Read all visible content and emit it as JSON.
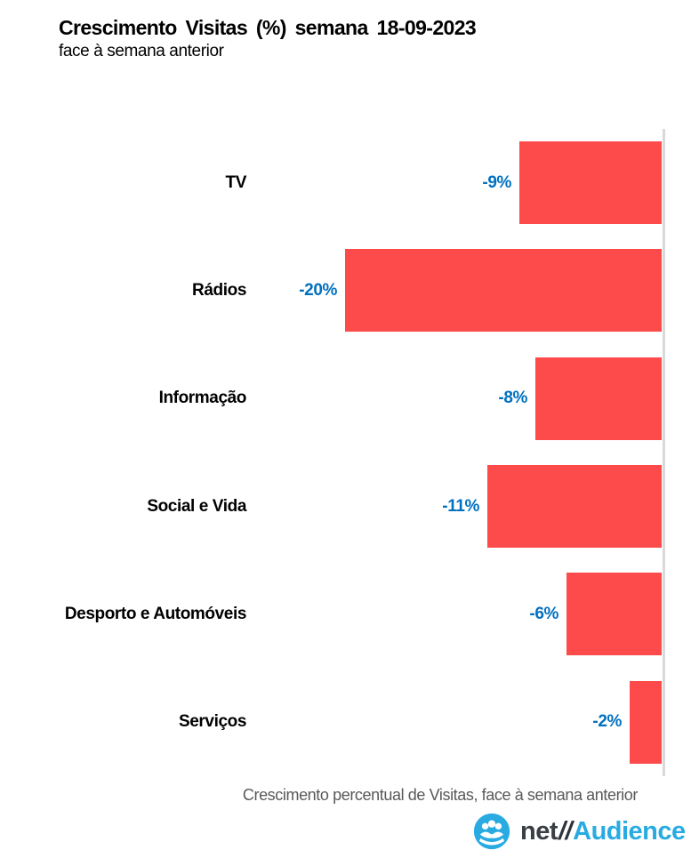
{
  "header": {
    "title": "Crescimento Visitas (%) semana 18-09-2023",
    "subtitle": "face à semana anterior"
  },
  "chart_data": {
    "type": "bar",
    "orientation": "horizontal",
    "title": "Crescimento Visitas (%) semana 18-09-2023",
    "subtitle": "face à semana anterior",
    "categories": [
      "TV",
      "Rádios",
      "Informação",
      "Social e Vida",
      "Desporto e Automóveis",
      "Serviços"
    ],
    "values": [
      -9,
      -20,
      -8,
      -11,
      -6,
      -2
    ],
    "value_labels": [
      "-9%",
      "-20%",
      "-8%",
      "-11%",
      "-6%",
      "-2%"
    ],
    "xlabel": "",
    "ylabel": "",
    "xlim": [
      -20.5,
      0
    ],
    "grid": false,
    "legend": false,
    "axis_side": "right-zero-baseline",
    "bar_color": "#FD4B4B",
    "value_label_color": "#0070C0",
    "axis_color": "#D9D9D9"
  },
  "footer": {
    "caption": "Crescimento percentual de Visitas, face à semana anterior",
    "logo": {
      "icon": "people-globe-icon",
      "net": "net",
      "slashes": "//",
      "audience": "Audience",
      "brand_blue": "#29ABE2",
      "brand_dark": "#3A3F45"
    }
  }
}
